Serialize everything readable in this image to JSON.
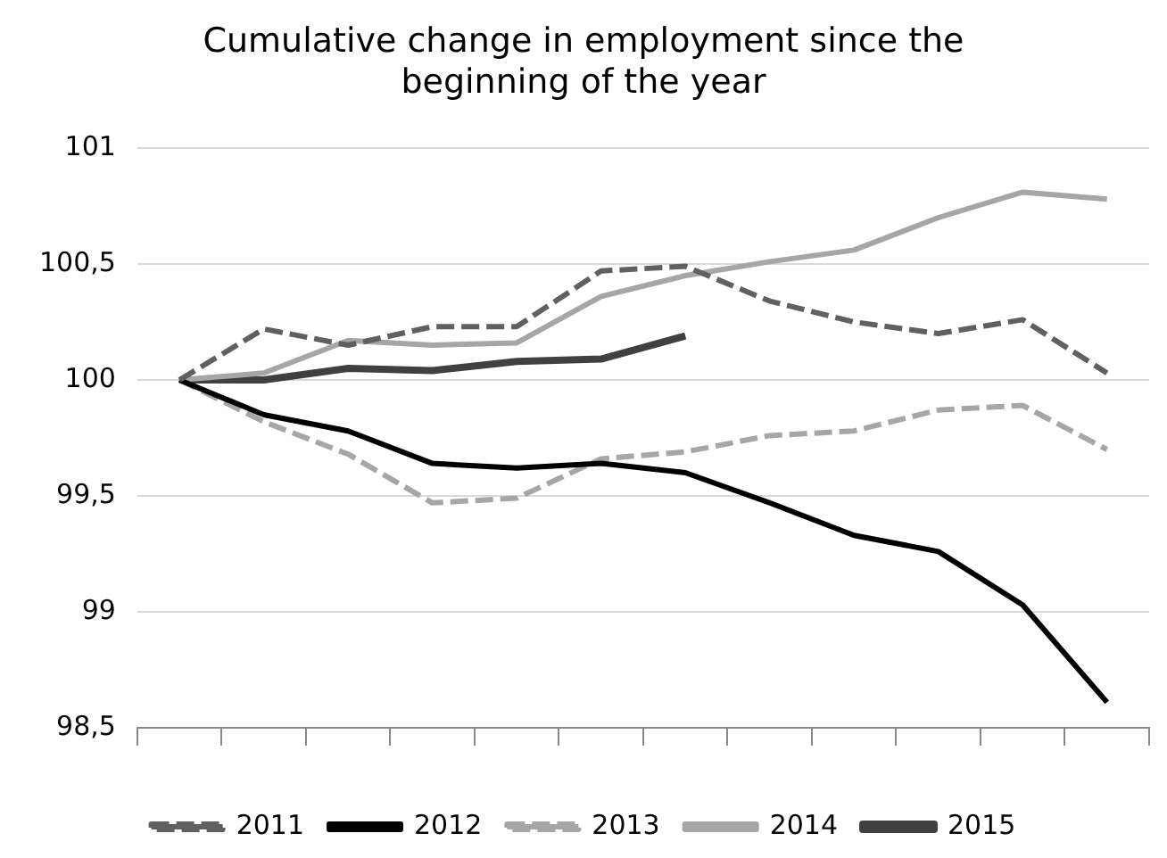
{
  "chart_data": {
    "type": "line",
    "title": "Cumulative change in employment since the beginning of the year",
    "categories": [
      null,
      null,
      null,
      null,
      null,
      null,
      null,
      null,
      null,
      null,
      null,
      null
    ],
    "series": [
      {
        "name": "2011",
        "color": "#606060",
        "line_style": "dashed",
        "values": [
          100,
          100.22,
          100.15,
          100.23,
          100.23,
          100.47,
          100.49,
          100.34,
          100.25,
          100.2,
          100.26,
          100.03
        ]
      },
      {
        "name": "2012",
        "color": "#000000",
        "line_style": "solid",
        "values": [
          100,
          99.85,
          99.78,
          99.64,
          99.62,
          99.64,
          99.6,
          99.47,
          99.33,
          99.26,
          99.03,
          98.61
        ]
      },
      {
        "name": "2013",
        "color": "#a6a6a6",
        "line_style": "dashed",
        "values": [
          100,
          99.82,
          99.68,
          99.47,
          99.49,
          99.66,
          99.69,
          99.76,
          99.78,
          99.87,
          99.89,
          99.7
        ]
      },
      {
        "name": "2014",
        "color": "#a6a6a6",
        "line_style": "solid",
        "values": [
          100,
          100.03,
          100.17,
          100.15,
          100.16,
          100.36,
          100.45,
          100.51,
          100.56,
          100.7,
          100.81,
          100.78
        ]
      },
      {
        "name": "2015",
        "color": "#404040",
        "line_style": "solid",
        "values": [
          100,
          100,
          100.05,
          100.04,
          100.08,
          100.09,
          100.19,
          null,
          null,
          null,
          null,
          null
        ]
      }
    ],
    "ylim": [
      98.5,
      101
    ],
    "yticks": [
      {
        "value": 98.5,
        "label": "98,5"
      },
      99,
      {
        "value": 99.5,
        "label": "99,5"
      },
      100,
      {
        "value": 100.5,
        "label": "100,5"
      },
      101
    ],
    "grid": "y",
    "legend": "bottom",
    "marker": "none"
  }
}
